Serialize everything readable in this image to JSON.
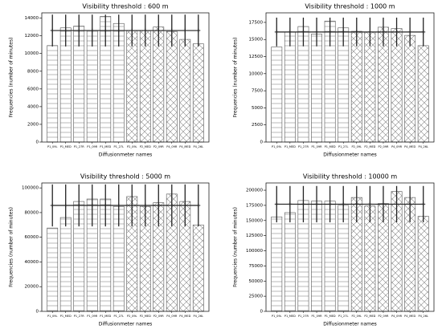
{
  "chart_data": [
    {
      "type": "bar",
      "title": "Visibility threshold : 600 m",
      "x_label": "Diffusionmeter names",
      "y_label": "Frequencies (number of minutes)",
      "categories": [
        "P1_09L",
        "P1_MED",
        "P1_27R",
        "P1_09R",
        "P1_MED",
        "P1_27L",
        "P2_09L",
        "P2_MED",
        "P2_09R",
        "P4_09R",
        "P4_MED",
        "P4_26L"
      ],
      "values": [
        10900,
        12900,
        13100,
        12600,
        14200,
        13400,
        12600,
        12600,
        13000,
        12500,
        11600,
        11100
      ],
      "hatches": [
        "-",
        "-",
        "-",
        "-",
        "-",
        "-",
        "x",
        "x",
        "x",
        "x",
        "x",
        "x"
      ],
      "line_values": [
        12600,
        12600,
        12600,
        12600,
        12600,
        12600,
        12600,
        12600,
        12600,
        12600,
        12600,
        12600
      ],
      "errors": [
        1800,
        1800,
        1800,
        1800,
        1800,
        1800,
        1800,
        1800,
        1800,
        1800,
        1800,
        1800
      ],
      "color": "#ffffff",
      "line_color": "#222222",
      "ylim": [
        0,
        14600
      ],
      "yticks": [
        0,
        2000,
        4000,
        6000,
        8000,
        10000,
        12000,
        14000
      ]
    },
    {
      "type": "bar",
      "title": "Visibility threshold : 1000 m",
      "x_label": "Diffusionmeter names",
      "y_label": "Frequencies (number of minutes)",
      "categories": [
        "P1_09L",
        "P1_MED",
        "P1_27R",
        "P1_09R",
        "P1_MED",
        "P1_27L",
        "P2_09L",
        "P2_MED",
        "P2_09R",
        "P4_09R",
        "P4_MED",
        "P4_26L"
      ],
      "values": [
        13900,
        16100,
        16900,
        15800,
        17700,
        16700,
        16200,
        16100,
        16800,
        16600,
        15600,
        14100
      ],
      "hatches": [
        "-",
        "-",
        "-",
        "-",
        "-",
        "-",
        "x",
        "x",
        "x",
        "x",
        "x",
        "x"
      ],
      "line_values": [
        16100,
        16100,
        16100,
        16100,
        16100,
        16100,
        16100,
        16100,
        16100,
        16100,
        16100,
        16100
      ],
      "errors": [
        2100,
        2100,
        2100,
        2100,
        2100,
        2100,
        2100,
        2100,
        2100,
        2100,
        2100,
        2100
      ],
      "color": "#ffffff",
      "line_color": "#222222",
      "ylim": [
        0,
        18900
      ],
      "yticks": [
        0,
        2500,
        5000,
        7500,
        10000,
        12500,
        15000,
        17500
      ]
    },
    {
      "type": "bar",
      "title": "Visibility threshold : 5000 m",
      "x_label": "Diffusionmeter names",
      "y_label": "Frequencies (number of minutes)",
      "categories": [
        "P1_09L",
        "P1_MED",
        "P1_27R",
        "P1_09R",
        "P1_MED",
        "P1_27L",
        "P2_09L",
        "P2_MED",
        "P2_09R",
        "P4_09R",
        "P4_MED",
        "P4_26L"
      ],
      "values": [
        67500,
        76000,
        89000,
        91000,
        91000,
        85000,
        93000,
        85000,
        88000,
        95000,
        89000,
        70000
      ],
      "hatches": [
        "-",
        "-",
        "-",
        "-",
        "-",
        "-",
        "x",
        "x",
        "x",
        "x",
        "x",
        "x"
      ],
      "line_values": [
        85800,
        85800,
        85800,
        85800,
        85800,
        85800,
        85800,
        85800,
        85800,
        85800,
        85800,
        85800
      ],
      "errors": [
        17000,
        17000,
        17000,
        17000,
        17000,
        17000,
        17000,
        17000,
        17000,
        17000,
        17000,
        17000
      ],
      "color": "#ffffff",
      "line_color": "#222222",
      "ylim": [
        0,
        104000
      ],
      "yticks": [
        0,
        20000,
        40000,
        60000,
        80000,
        100000
      ]
    },
    {
      "type": "bar",
      "title": "Visibility threshold : 10000 m",
      "x_label": "Diffusionmeter names",
      "y_label": "Frequencies (number of minutes)",
      "categories": [
        "P1_09L",
        "P1_MED",
        "P1_27R",
        "P1_09R",
        "P1_MED",
        "P1_27L",
        "P2_09L",
        "P2_MED",
        "P2_09R",
        "P4_09R",
        "P4_MED",
        "P4_26L"
      ],
      "values": [
        156000,
        163000,
        183000,
        182000,
        182000,
        175000,
        188000,
        174000,
        178000,
        198000,
        188000,
        157000
      ],
      "hatches": [
        "-",
        "-",
        "-",
        "-",
        "-",
        "-",
        "x",
        "x",
        "x",
        "x",
        "x",
        "x"
      ],
      "line_values": [
        177000,
        177000,
        177000,
        177000,
        177000,
        177000,
        177000,
        177000,
        177000,
        177000,
        177000,
        177000
      ],
      "errors": [
        30000,
        30000,
        30000,
        30000,
        30000,
        30000,
        30000,
        30000,
        30000,
        30000,
        30000,
        30000
      ],
      "color": "#ffffff",
      "line_color": "#222222",
      "ylim": [
        0,
        212000
      ],
      "yticks": [
        0,
        25000,
        50000,
        75000,
        100000,
        125000,
        150000,
        175000,
        200000
      ]
    }
  ]
}
